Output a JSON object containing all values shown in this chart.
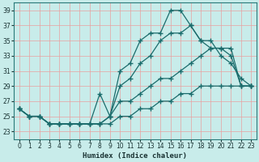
{
  "xlabel": "Humidex (Indice chaleur)",
  "xlim": [
    -0.5,
    23.5
  ],
  "ylim": [
    22.0,
    40.0
  ],
  "yticks": [
    23,
    25,
    27,
    29,
    31,
    33,
    35,
    37,
    39
  ],
  "xticks": [
    0,
    1,
    2,
    3,
    4,
    5,
    6,
    7,
    8,
    9,
    10,
    11,
    12,
    13,
    14,
    15,
    16,
    17,
    18,
    19,
    20,
    21,
    22,
    23
  ],
  "bg_color": "#c8ecea",
  "grid_color": "#e8a0a0",
  "line_color": "#1a6b6b",
  "line_width": 0.9,
  "marker": "+",
  "marker_size": 4,
  "lines": [
    [
      26,
      25,
      25,
      24,
      24,
      24,
      24,
      24,
      28,
      25,
      31,
      32,
      35,
      36,
      36,
      39,
      39,
      37,
      35,
      35,
      33,
      32,
      30,
      29
    ],
    [
      26,
      25,
      25,
      24,
      24,
      24,
      24,
      24,
      24,
      25,
      29,
      30,
      32,
      33,
      35,
      36,
      36,
      37,
      35,
      34,
      34,
      33,
      29,
      29
    ],
    [
      26,
      25,
      25,
      24,
      24,
      24,
      24,
      24,
      24,
      25,
      27,
      27,
      28,
      29,
      30,
      30,
      31,
      32,
      33,
      34,
      34,
      34,
      29,
      29
    ],
    [
      26,
      25,
      25,
      24,
      24,
      24,
      24,
      24,
      24,
      24,
      25,
      25,
      26,
      26,
      27,
      27,
      28,
      28,
      29,
      29,
      29,
      29,
      29,
      29
    ]
  ],
  "tick_fontsize": 5.5,
  "xlabel_fontsize": 6.5
}
